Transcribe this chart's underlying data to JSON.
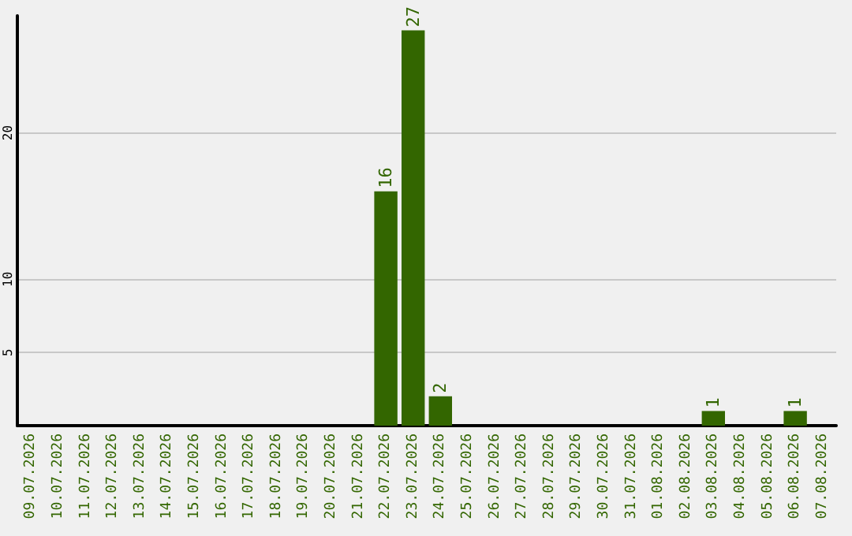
{
  "chart_data": {
    "type": "bar",
    "categories": [
      "09.07.2026",
      "10.07.2026",
      "11.07.2026",
      "12.07.2026",
      "13.07.2026",
      "14.07.2026",
      "15.07.2026",
      "16.07.2026",
      "17.07.2026",
      "18.07.2026",
      "19.07.2026",
      "20.07.2026",
      "21.07.2026",
      "22.07.2026",
      "23.07.2026",
      "24.07.2026",
      "25.07.2026",
      "26.07.2026",
      "27.07.2026",
      "28.07.2026",
      "29.07.2026",
      "30.07.2026",
      "31.07.2026",
      "01.08.2026",
      "02.08.2026",
      "03.08.2026",
      "04.08.2026",
      "05.08.2026",
      "06.08.2026",
      "07.08.2026"
    ],
    "values": [
      0,
      0,
      0,
      0,
      0,
      0,
      0,
      0,
      0,
      0,
      0,
      0,
      0,
      16,
      27,
      2,
      0,
      0,
      0,
      0,
      0,
      0,
      0,
      0,
      0,
      1,
      0,
      0,
      1,
      0
    ],
    "value_labels": [
      null,
      null,
      null,
      null,
      null,
      null,
      null,
      null,
      null,
      null,
      null,
      null,
      null,
      "16",
      "27",
      "2",
      null,
      null,
      null,
      null,
      null,
      null,
      null,
      null,
      null,
      "1",
      null,
      null,
      "1",
      null
    ],
    "color": "#336600",
    "ylim": [
      0,
      28
    ],
    "yticks": [
      5,
      10,
      20
    ],
    "grid": "y"
  }
}
